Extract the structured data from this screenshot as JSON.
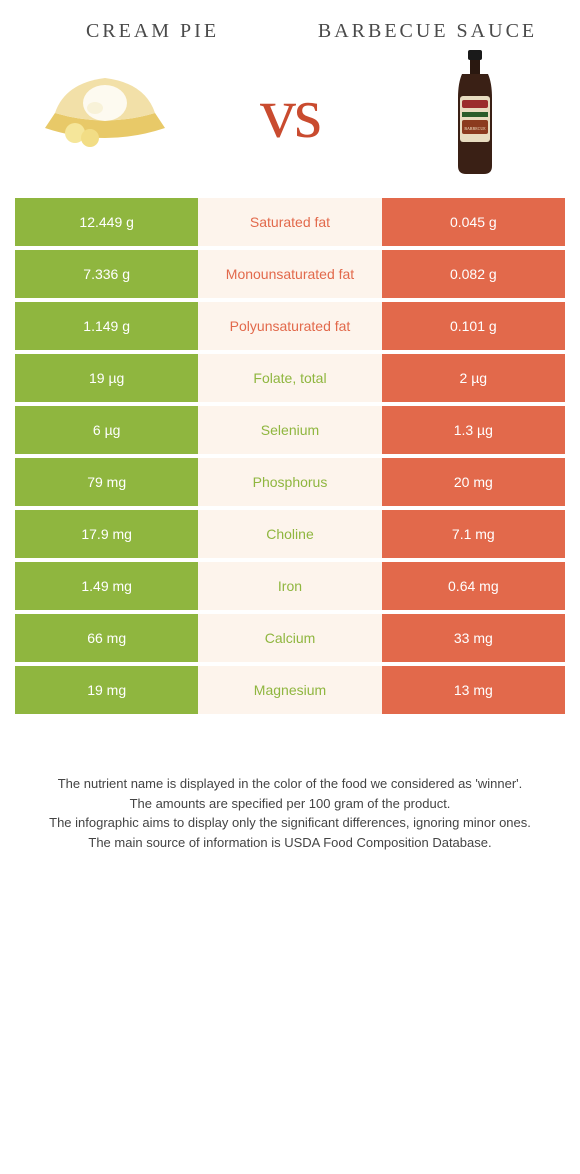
{
  "colors": {
    "green": "#8fb63f",
    "orange": "#e2694b",
    "mid_bg": "#fdf4ec",
    "vs": "#c94b2f"
  },
  "food_left": {
    "title": "Cream Pie"
  },
  "food_right": {
    "title": "Barbecue Sauce"
  },
  "vs_text": "vs",
  "rows": [
    {
      "left": "12.449 g",
      "label": "Saturated fat",
      "right": "0.045 g",
      "winner": "orange"
    },
    {
      "left": "7.336 g",
      "label": "Monounsaturated fat",
      "right": "0.082 g",
      "winner": "orange"
    },
    {
      "left": "1.149 g",
      "label": "Polyunsaturated fat",
      "right": "0.101 g",
      "winner": "orange"
    },
    {
      "left": "19 µg",
      "label": "Folate, total",
      "right": "2 µg",
      "winner": "green"
    },
    {
      "left": "6 µg",
      "label": "Selenium",
      "right": "1.3 µg",
      "winner": "green"
    },
    {
      "left": "79 mg",
      "label": "Phosphorus",
      "right": "20 mg",
      "winner": "green"
    },
    {
      "left": "17.9 mg",
      "label": "Choline",
      "right": "7.1 mg",
      "winner": "green"
    },
    {
      "left": "1.49 mg",
      "label": "Iron",
      "right": "0.64 mg",
      "winner": "green"
    },
    {
      "left": "66 mg",
      "label": "Calcium",
      "right": "33 mg",
      "winner": "green"
    },
    {
      "left": "19 mg",
      "label": "Magnesium",
      "right": "13 mg",
      "winner": "green"
    }
  ],
  "notes": [
    "The nutrient name is displayed in the color of the food we considered as 'winner'.",
    "The amounts are specified per 100 gram of the product.",
    "The infographic aims to display only the significant differences, ignoring minor ones.",
    "The main source of information is USDA Food Composition Database."
  ]
}
